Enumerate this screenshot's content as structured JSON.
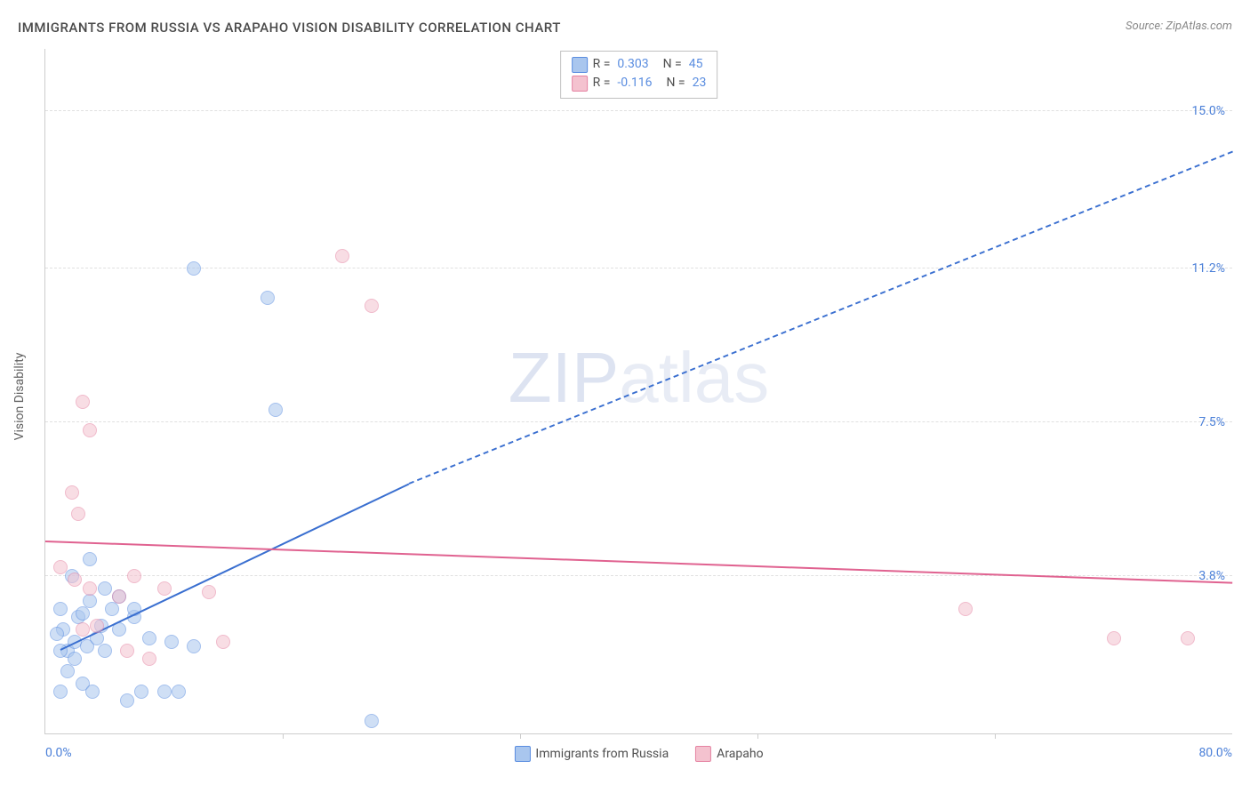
{
  "title": "IMMIGRANTS FROM RUSSIA VS ARAPAHO VISION DISABILITY CORRELATION CHART",
  "source_label": "Source: ZipAtlas.com",
  "ylabel": "Vision Disability",
  "watermark_a": "ZIP",
  "watermark_b": "atlas",
  "chart": {
    "type": "scatter",
    "xlim": [
      0.0,
      80.0
    ],
    "ylim": [
      0.0,
      16.5
    ],
    "xticks": [
      0.0,
      80.0
    ],
    "xtick_labels": [
      "0.0%",
      "80.0%"
    ],
    "xtick_minor": [
      16,
      32,
      48,
      64
    ],
    "ytick_values": [
      3.8,
      7.5,
      11.2,
      15.0
    ],
    "ytick_labels": [
      "3.8%",
      "7.5%",
      "11.2%",
      "15.0%"
    ],
    "background_color": "#ffffff",
    "grid_color": "#e0e0e0",
    "marker_radius": 8,
    "marker_opacity": 0.55,
    "series": [
      {
        "name": "Immigrants from Russia",
        "fill": "#a9c6ee",
        "stroke": "#5a8de0",
        "R": "0.303",
        "N": "45",
        "trend": {
          "solid_from": [
            1.0,
            2.0
          ],
          "solid_to": [
            24.5,
            6.0
          ],
          "dashed_to": [
            80.0,
            14.0
          ],
          "color": "#3a6fd0",
          "width": 2.5
        },
        "points": [
          [
            1.5,
            2.0
          ],
          [
            2.0,
            2.2
          ],
          [
            1.2,
            2.5
          ],
          [
            2.8,
            2.1
          ],
          [
            3.5,
            2.3
          ],
          [
            2.2,
            2.8
          ],
          [
            4.0,
            2.0
          ],
          [
            1.0,
            3.0
          ],
          [
            3.0,
            3.2
          ],
          [
            5.0,
            2.5
          ],
          [
            6.0,
            2.8
          ],
          [
            4.5,
            3.0
          ],
          [
            2.5,
            1.2
          ],
          [
            3.2,
            1.0
          ],
          [
            5.5,
            0.8
          ],
          [
            6.5,
            1.0
          ],
          [
            8.0,
            1.0
          ],
          [
            9.0,
            1.0
          ],
          [
            7.0,
            2.3
          ],
          [
            8.5,
            2.2
          ],
          [
            10.0,
            2.1
          ],
          [
            4.0,
            3.5
          ],
          [
            5.0,
            3.3
          ],
          [
            6.0,
            3.0
          ],
          [
            3.0,
            4.2
          ],
          [
            1.8,
            3.8
          ],
          [
            1.0,
            2.0
          ],
          [
            2.0,
            1.8
          ],
          [
            0.8,
            2.4
          ],
          [
            1.5,
            1.5
          ],
          [
            2.5,
            2.9
          ],
          [
            3.8,
            2.6
          ],
          [
            1.0,
            1.0
          ],
          [
            22.0,
            0.3
          ],
          [
            10.0,
            11.2
          ],
          [
            15.0,
            10.5
          ],
          [
            15.5,
            7.8
          ]
        ]
      },
      {
        "name": "Arapaho",
        "fill": "#f4c2cf",
        "stroke": "#e583a2",
        "R": "-0.116",
        "N": "23",
        "trend": {
          "solid_from": [
            0.0,
            4.6
          ],
          "solid_to": [
            80.0,
            3.6
          ],
          "dashed_to": null,
          "color": "#e06290",
          "width": 2.5
        },
        "points": [
          [
            1.0,
            4.0
          ],
          [
            2.0,
            3.7
          ],
          [
            3.0,
            3.5
          ],
          [
            5.0,
            3.3
          ],
          [
            6.0,
            3.8
          ],
          [
            8.0,
            3.5
          ],
          [
            11.0,
            3.4
          ],
          [
            12.0,
            2.2
          ],
          [
            2.5,
            2.5
          ],
          [
            7.0,
            1.8
          ],
          [
            5.5,
            2.0
          ],
          [
            3.5,
            2.6
          ],
          [
            1.8,
            5.8
          ],
          [
            2.2,
            5.3
          ],
          [
            2.5,
            8.0
          ],
          [
            3.0,
            7.3
          ],
          [
            20.0,
            11.5
          ],
          [
            22.0,
            10.3
          ],
          [
            62.0,
            3.0
          ],
          [
            72.0,
            2.3
          ],
          [
            77.0,
            2.3
          ]
        ]
      }
    ]
  },
  "bottom_legend": [
    {
      "label": "Immigrants from Russia",
      "fill": "#a9c6ee",
      "stroke": "#5a8de0"
    },
    {
      "label": "Arapaho",
      "fill": "#f4c2cf",
      "stroke": "#e583a2"
    }
  ]
}
